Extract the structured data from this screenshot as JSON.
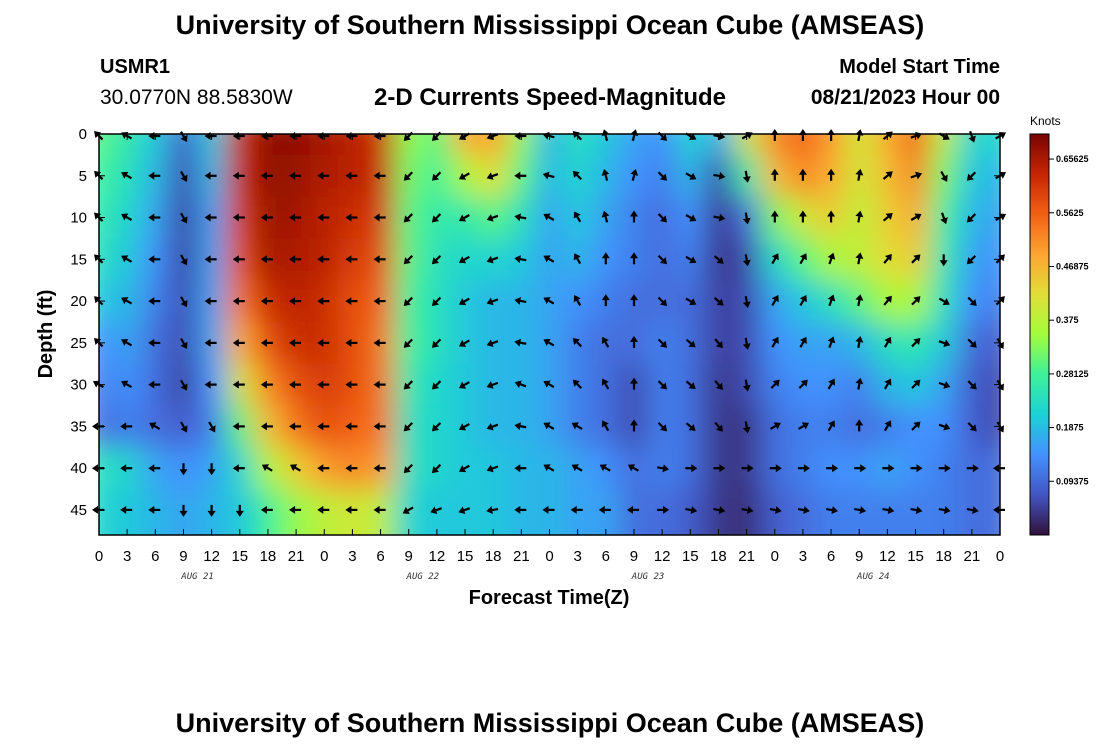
{
  "header": {
    "title": "University of Southern Mississippi Ocean Cube (AMSEAS)",
    "station_id": "USMR1",
    "station_coords": "30.0770N  88.5830W",
    "plot_title": "2-D Currents Speed-Magnitude",
    "model_label": "Model Start Time",
    "model_time": "08/21/2023 Hour 00"
  },
  "footer": {
    "title": "University of Southern Mississippi Ocean Cube (AMSEAS)"
  },
  "colors": {
    "ramp": [
      "#30123b",
      "#4454c4",
      "#4391fe",
      "#1bd1d6",
      "#3df19a",
      "#a2fc3c",
      "#e1dd37",
      "#fda531",
      "#f26014",
      "#c52503",
      "#7a0403"
    ]
  },
  "chart_data": {
    "type": "heatmap",
    "title": "2-D Currents Speed-Magnitude",
    "xlabel": "Forecast Time(Z)",
    "ylabel": "Depth (ft)",
    "x_ticks": [
      "0",
      "3",
      "6",
      "9",
      "12",
      "15",
      "18",
      "21",
      "0",
      "3",
      "6",
      "9",
      "12",
      "15",
      "18",
      "21",
      "0",
      "3",
      "6",
      "9",
      "12",
      "15",
      "18",
      "21",
      "0",
      "3",
      "6",
      "9",
      "12",
      "15",
      "18",
      "21",
      "0"
    ],
    "x_range_hours": [
      0,
      96
    ],
    "day_labels": [
      {
        "label": "AUG 21",
        "hour": 10.5
      },
      {
        "label": "AUG 22",
        "hour": 34.5
      },
      {
        "label": "AUG 23",
        "hour": 58.5
      },
      {
        "label": "AUG 24",
        "hour": 82.5
      }
    ],
    "y_ticks": [
      "0",
      "5",
      "10",
      "15",
      "20",
      "25",
      "30",
      "35",
      "40",
      "45"
    ],
    "y_range_ft": [
      0,
      48
    ],
    "colorbar": {
      "unit": "Knots",
      "range": [
        0,
        0.7
      ],
      "tick_values": [
        0.65625,
        0.5625,
        0.46875,
        0.375,
        0.28125,
        0.1875,
        0.09375
      ],
      "tick_labels": [
        "0.65625",
        "0.5625",
        "0.46875",
        "0.375",
        "0.28125",
        "0.1875",
        "0.09375"
      ]
    },
    "depths_ft": [
      0,
      5,
      10,
      15,
      20,
      25,
      30,
      35,
      40,
      45
    ],
    "times_h": [
      0,
      3,
      6,
      9,
      12,
      15,
      18,
      21,
      24,
      27,
      30,
      33,
      36,
      39,
      42,
      45,
      48,
      51,
      54,
      57,
      60,
      63,
      66,
      69,
      72,
      75,
      78,
      81,
      84,
      87,
      90,
      93,
      96
    ],
    "speed_knots": [
      [
        0.3,
        0.26,
        0.2,
        0.08,
        0.2,
        0.62,
        0.68,
        0.68,
        0.66,
        0.64,
        0.62,
        0.34,
        0.3,
        0.48,
        0.5,
        0.34,
        0.18,
        0.24,
        0.2,
        0.16,
        0.14,
        0.22,
        0.17,
        0.4,
        0.52,
        0.56,
        0.5,
        0.4,
        0.48,
        0.56,
        0.38,
        0.22,
        0.22
      ],
      [
        0.28,
        0.24,
        0.18,
        0.06,
        0.18,
        0.62,
        0.68,
        0.67,
        0.65,
        0.64,
        0.62,
        0.32,
        0.28,
        0.36,
        0.42,
        0.3,
        0.18,
        0.22,
        0.18,
        0.14,
        0.12,
        0.18,
        0.06,
        0.26,
        0.46,
        0.52,
        0.48,
        0.4,
        0.46,
        0.52,
        0.32,
        0.2,
        0.18
      ],
      [
        0.26,
        0.22,
        0.16,
        0.05,
        0.16,
        0.6,
        0.67,
        0.66,
        0.64,
        0.62,
        0.6,
        0.3,
        0.26,
        0.26,
        0.3,
        0.24,
        0.16,
        0.2,
        0.16,
        0.12,
        0.1,
        0.14,
        0.04,
        0.1,
        0.32,
        0.4,
        0.44,
        0.38,
        0.44,
        0.48,
        0.28,
        0.18,
        0.16
      ],
      [
        0.24,
        0.2,
        0.14,
        0.05,
        0.16,
        0.58,
        0.66,
        0.65,
        0.64,
        0.6,
        0.58,
        0.3,
        0.24,
        0.22,
        0.22,
        0.2,
        0.16,
        0.18,
        0.14,
        0.12,
        0.1,
        0.12,
        0.04,
        0.06,
        0.22,
        0.3,
        0.36,
        0.38,
        0.42,
        0.44,
        0.26,
        0.16,
        0.14
      ],
      [
        0.2,
        0.18,
        0.12,
        0.06,
        0.16,
        0.54,
        0.62,
        0.64,
        0.62,
        0.58,
        0.56,
        0.28,
        0.24,
        0.2,
        0.18,
        0.18,
        0.16,
        0.14,
        0.12,
        0.1,
        0.1,
        0.1,
        0.05,
        0.06,
        0.16,
        0.2,
        0.24,
        0.3,
        0.36,
        0.36,
        0.24,
        0.14,
        0.12
      ],
      [
        0.14,
        0.16,
        0.1,
        0.06,
        0.16,
        0.48,
        0.58,
        0.62,
        0.62,
        0.58,
        0.54,
        0.28,
        0.24,
        0.2,
        0.18,
        0.18,
        0.16,
        0.12,
        0.1,
        0.1,
        0.12,
        0.1,
        0.05,
        0.06,
        0.14,
        0.16,
        0.16,
        0.18,
        0.24,
        0.26,
        0.2,
        0.1,
        0.08
      ],
      [
        0.12,
        0.14,
        0.1,
        0.05,
        0.14,
        0.4,
        0.52,
        0.58,
        0.6,
        0.58,
        0.54,
        0.26,
        0.22,
        0.2,
        0.18,
        0.18,
        0.16,
        0.12,
        0.1,
        0.06,
        0.12,
        0.1,
        0.04,
        0.06,
        0.12,
        0.14,
        0.14,
        0.12,
        0.18,
        0.2,
        0.16,
        0.08,
        0.06
      ],
      [
        0.1,
        0.12,
        0.1,
        0.08,
        0.12,
        0.3,
        0.46,
        0.54,
        0.58,
        0.56,
        0.54,
        0.24,
        0.22,
        0.2,
        0.18,
        0.18,
        0.16,
        0.12,
        0.1,
        0.06,
        0.12,
        0.1,
        0.04,
        0.04,
        0.1,
        0.12,
        0.12,
        0.1,
        0.12,
        0.14,
        0.14,
        0.08,
        0.06
      ],
      [
        0.24,
        0.22,
        0.16,
        0.14,
        0.16,
        0.22,
        0.36,
        0.44,
        0.5,
        0.52,
        0.5,
        0.24,
        0.22,
        0.2,
        0.2,
        0.18,
        0.18,
        0.16,
        0.14,
        0.1,
        0.12,
        0.1,
        0.04,
        0.04,
        0.1,
        0.12,
        0.14,
        0.14,
        0.16,
        0.14,
        0.12,
        0.1,
        0.1
      ],
      [
        0.22,
        0.2,
        0.18,
        0.16,
        0.18,
        0.2,
        0.28,
        0.34,
        0.38,
        0.4,
        0.38,
        0.22,
        0.2,
        0.2,
        0.2,
        0.18,
        0.18,
        0.16,
        0.16,
        0.1,
        0.1,
        0.08,
        0.04,
        0.03,
        0.08,
        0.1,
        0.12,
        0.12,
        0.12,
        0.12,
        0.12,
        0.1,
        0.1
      ]
    ],
    "direction_deg": [
      [
        315,
        300,
        270,
        150,
        270,
        270,
        270,
        270,
        270,
        270,
        270,
        225,
        225,
        240,
        250,
        270,
        285,
        315,
        345,
        15,
        135,
        120,
        100,
        60,
        0,
        0,
        0,
        10,
        50,
        70,
        120,
        160,
        60
      ],
      [
        315,
        300,
        270,
        150,
        270,
        270,
        270,
        270,
        270,
        270,
        270,
        225,
        225,
        240,
        250,
        270,
        285,
        315,
        345,
        15,
        135,
        120,
        100,
        170,
        0,
        0,
        0,
        10,
        50,
        70,
        150,
        225,
        60
      ],
      [
        315,
        300,
        270,
        150,
        270,
        270,
        270,
        270,
        270,
        270,
        270,
        225,
        225,
        240,
        250,
        280,
        300,
        330,
        345,
        0,
        135,
        120,
        100,
        170,
        0,
        0,
        0,
        10,
        50,
        60,
        160,
        225,
        60
      ],
      [
        315,
        300,
        270,
        150,
        270,
        270,
        270,
        270,
        270,
        270,
        270,
        225,
        225,
        240,
        250,
        280,
        300,
        330,
        0,
        0,
        135,
        120,
        130,
        170,
        30,
        30,
        20,
        10,
        40,
        45,
        180,
        225,
        45
      ],
      [
        315,
        300,
        270,
        150,
        270,
        270,
        270,
        270,
        270,
        270,
        270,
        225,
        225,
        240,
        250,
        280,
        300,
        330,
        0,
        0,
        135,
        120,
        130,
        170,
        30,
        30,
        20,
        10,
        40,
        45,
        120,
        135,
        45
      ],
      [
        315,
        300,
        270,
        150,
        270,
        270,
        270,
        270,
        270,
        270,
        270,
        225,
        225,
        240,
        250,
        280,
        300,
        315,
        330,
        0,
        135,
        130,
        140,
        170,
        30,
        30,
        20,
        10,
        30,
        45,
        110,
        135,
        150
      ],
      [
        300,
        300,
        270,
        150,
        270,
        270,
        270,
        270,
        270,
        270,
        270,
        225,
        225,
        240,
        250,
        290,
        300,
        315,
        330,
        0,
        135,
        130,
        140,
        170,
        45,
        45,
        30,
        10,
        30,
        45,
        110,
        135,
        150
      ],
      [
        270,
        270,
        300,
        150,
        150,
        270,
        270,
        270,
        270,
        270,
        270,
        225,
        225,
        240,
        250,
        280,
        300,
        300,
        330,
        0,
        135,
        130,
        140,
        170,
        60,
        60,
        30,
        0,
        30,
        45,
        110,
        135,
        150
      ],
      [
        270,
        270,
        270,
        180,
        180,
        270,
        300,
        300,
        270,
        270,
        270,
        225,
        225,
        240,
        250,
        270,
        300,
        300,
        300,
        300,
        100,
        90,
        90,
        90,
        90,
        90,
        90,
        90,
        90,
        90,
        90,
        90,
        270
      ],
      [
        270,
        270,
        270,
        180,
        180,
        180,
        270,
        270,
        270,
        270,
        270,
        240,
        250,
        250,
        260,
        270,
        270,
        270,
        270,
        270,
        90,
        100,
        100,
        100,
        100,
        100,
        100,
        100,
        100,
        100,
        100,
        100,
        270
      ]
    ]
  }
}
